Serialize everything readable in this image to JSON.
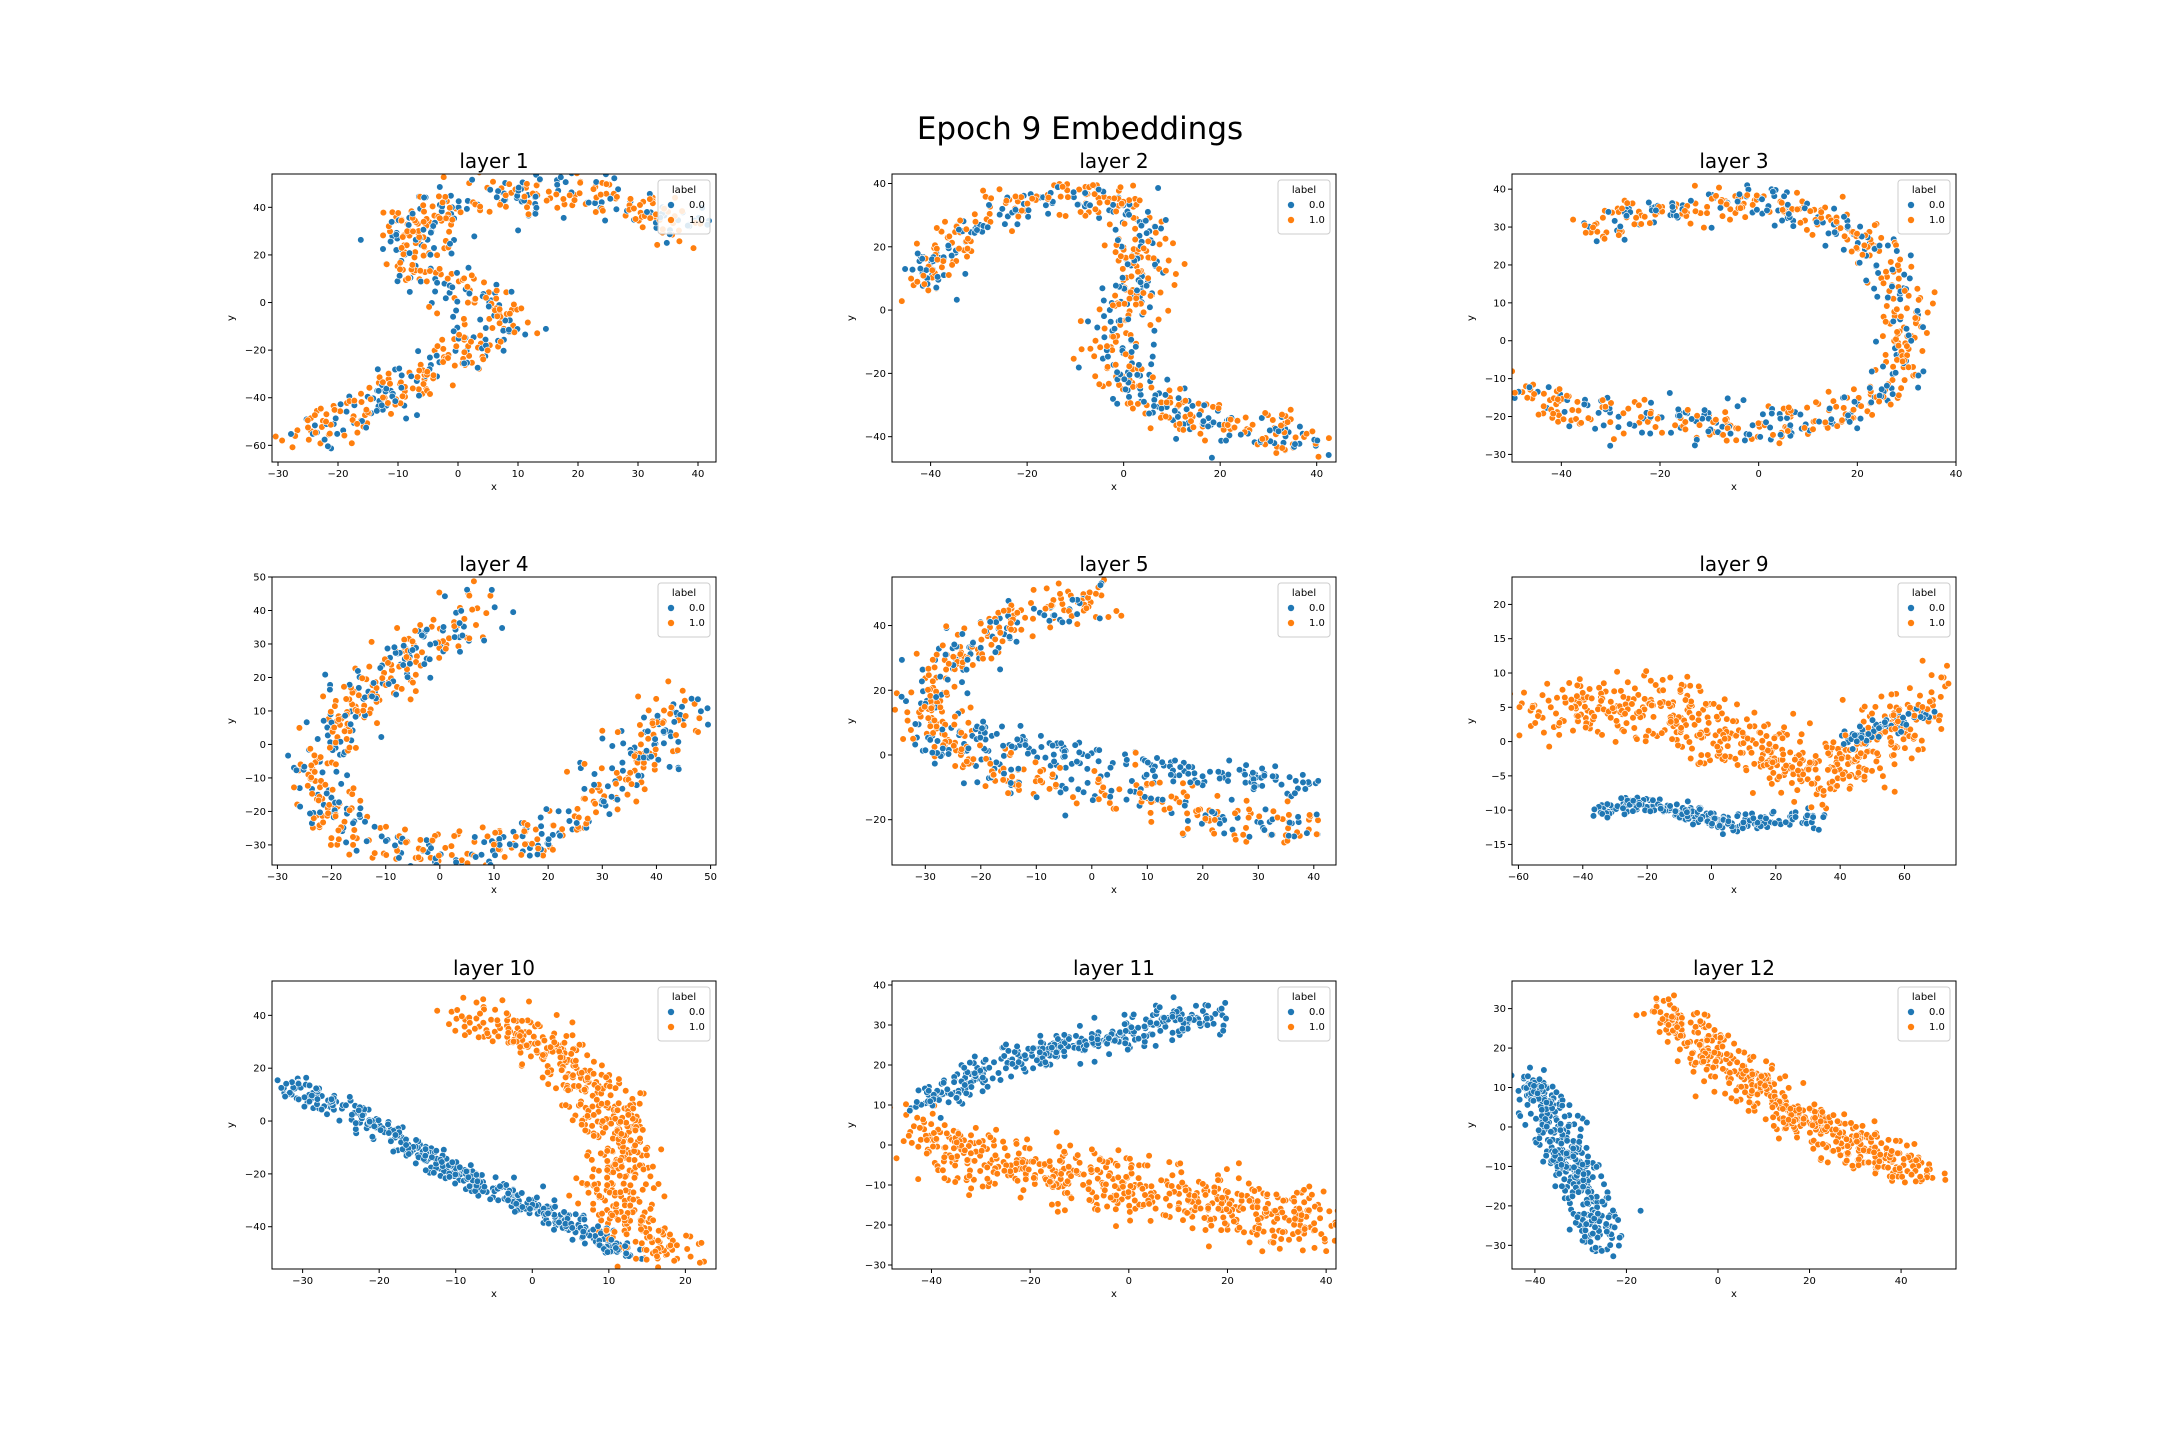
{
  "figure": {
    "suptitle": "Epoch 9 Embeddings",
    "colors": {
      "0.0": "#1f77b4",
      "1.0": "#ff7f0e"
    }
  },
  "chart_data": [
    {
      "type": "scatter",
      "title": "layer 1",
      "xlabel": "x",
      "ylabel": "y",
      "xlim": [
        -31,
        43
      ],
      "ylim": [
        -67,
        54
      ],
      "xticks": [
        -30,
        -20,
        -10,
        0,
        10,
        20,
        30,
        40
      ],
      "yticks": [
        -60,
        -40,
        -20,
        0,
        20,
        40
      ],
      "legend": {
        "title": "label",
        "entries": [
          "0.0",
          "1.0"
        ],
        "placement": "top-right"
      },
      "structure": [
        {
          "label": "mixed",
          "path": [
            [
              -27,
              -58
            ],
            [
              -20,
              -50
            ],
            [
              -12,
              -40
            ],
            [
              -4,
              -28
            ],
            [
              4,
              -15
            ],
            [
              8,
              -8
            ],
            [
              4,
              2
            ],
            [
              -4,
              10
            ],
            [
              -8,
              20
            ],
            [
              -8,
              32
            ],
            [
              -2,
              42
            ],
            [
              10,
              46
            ],
            [
              22,
              46
            ],
            [
              32,
              38
            ],
            [
              40,
              30
            ]
          ],
          "spread": 3.5,
          "n": 620
        }
      ]
    },
    {
      "type": "scatter",
      "title": "layer 2",
      "xlabel": "x",
      "ylabel": "y",
      "xlim": [
        -48,
        44
      ],
      "ylim": [
        -48,
        43
      ],
      "xticks": [
        -40,
        -20,
        0,
        20,
        40
      ],
      "yticks": [
        -40,
        -20,
        0,
        20,
        40
      ],
      "legend": {
        "title": "label",
        "entries": [
          "0.0",
          "1.0"
        ],
        "placement": "top-right"
      },
      "structure": [
        {
          "label": "mixed",
          "path": [
            [
              -42,
              7
            ],
            [
              -37,
              18
            ],
            [
              -30,
              28
            ],
            [
              -20,
              35
            ],
            [
              -10,
              37
            ],
            [
              -2,
              35
            ],
            [
              3,
              25
            ],
            [
              4,
              10
            ],
            [
              0,
              -5
            ],
            [
              -2,
              -15
            ],
            [
              4,
              -28
            ],
            [
              15,
              -35
            ],
            [
              28,
              -38
            ],
            [
              40,
              -43
            ]
          ],
          "spread": 3.2,
          "n": 620
        }
      ]
    },
    {
      "type": "scatter",
      "title": "layer 3",
      "xlabel": "x",
      "ylabel": "y",
      "xlim": [
        -50,
        40
      ],
      "ylim": [
        -32,
        44
      ],
      "xticks": [
        -40,
        -20,
        0,
        20,
        40
      ],
      "yticks": [
        -30,
        -20,
        -10,
        0,
        10,
        20,
        30,
        40
      ],
      "legend": {
        "title": "label",
        "entries": [
          "0.0",
          "1.0"
        ],
        "placement": "top-right"
      },
      "structure": [
        {
          "label": "mixed",
          "path": [
            [
              -33,
              29
            ],
            [
              -25,
              33
            ],
            [
              -15,
              34
            ],
            [
              -5,
              37
            ],
            [
              5,
              35
            ],
            [
              15,
              32
            ],
            [
              24,
              25
            ],
            [
              30,
              12
            ],
            [
              30,
              0
            ],
            [
              26,
              -12
            ],
            [
              18,
              -20
            ],
            [
              5,
              -22
            ],
            [
              -10,
              -22
            ],
            [
              -25,
              -20
            ],
            [
              -38,
              -18
            ],
            [
              -47,
              -13
            ]
          ],
          "spread": 2.8,
          "n": 640
        }
      ]
    },
    {
      "type": "scatter",
      "title": "layer 4",
      "xlabel": "x",
      "ylabel": "y",
      "xlim": [
        -31,
        51
      ],
      "ylim": [
        -36,
        50
      ],
      "xticks": [
        -30,
        -20,
        -10,
        0,
        10,
        20,
        30,
        40,
        50
      ],
      "yticks": [
        -30,
        -20,
        -10,
        0,
        10,
        20,
        30,
        40,
        50
      ],
      "legend": {
        "title": "label",
        "entries": [
          "0.0",
          "1.0"
        ],
        "placement": "top-right"
      },
      "structure": [
        {
          "label": "mixed",
          "path": [
            [
              10,
              43
            ],
            [
              4,
              36
            ],
            [
              -4,
              28
            ],
            [
              -12,
              18
            ],
            [
              -20,
              5
            ],
            [
              -24,
              -8
            ],
            [
              -20,
              -22
            ],
            [
              -10,
              -30
            ],
            [
              5,
              -33
            ],
            [
              18,
              -28
            ],
            [
              30,
              -15
            ],
            [
              38,
              -2
            ],
            [
              43,
              10
            ],
            [
              46,
              13
            ]
          ],
          "spread": 3.6,
          "n": 640
        }
      ]
    },
    {
      "type": "scatter",
      "title": "layer 5",
      "xlabel": "x",
      "ylabel": "y",
      "xlim": [
        -36,
        44
      ],
      "ylim": [
        -34,
        55
      ],
      "xticks": [
        -30,
        -20,
        -10,
        0,
        10,
        20,
        30,
        40
      ],
      "yticks": [
        -20,
        0,
        20,
        40
      ],
      "legend": {
        "title": "label",
        "entries": [
          "0.0",
          "1.0"
        ],
        "placement": "top-right"
      },
      "structure": [
        {
          "label": "mixed",
          "path": [
            [
              2,
              49
            ],
            [
              -8,
              45
            ],
            [
              -18,
              38
            ],
            [
              -26,
              28
            ],
            [
              -30,
              15
            ],
            [
              -26,
              2
            ],
            [
              -15,
              -6
            ],
            [
              0,
              -10
            ],
            [
              15,
              -15
            ],
            [
              28,
              -20
            ],
            [
              40,
              -22
            ]
          ],
          "spread": 3.3,
          "n": 520
        },
        {
          "label": "0.0",
          "path": [
            [
              -22,
              8
            ],
            [
              -10,
              2
            ],
            [
              5,
              -2
            ],
            [
              20,
              -5
            ],
            [
              32,
              -8
            ],
            [
              40,
              -10
            ]
          ],
          "spread": 2.2,
          "n": 150
        }
      ]
    },
    {
      "type": "scatter",
      "title": "layer 9",
      "xlabel": "x",
      "ylabel": "y",
      "xlim": [
        -62,
        76
      ],
      "ylim": [
        -18,
        24
      ],
      "xticks": [
        -60,
        -40,
        -20,
        0,
        20,
        40,
        60
      ],
      "yticks": [
        -15,
        -10,
        -5,
        0,
        5,
        10,
        15,
        20
      ],
      "legend": {
        "title": "label",
        "entries": [
          "0.0",
          "1.0"
        ],
        "placement": "top-right"
      },
      "structure": [
        {
          "label": "1.0",
          "path": [
            [
              -50,
              3
            ],
            [
              -35,
              6
            ],
            [
              -20,
              5
            ],
            [
              -5,
              3
            ],
            [
              10,
              0
            ],
            [
              25,
              -4
            ],
            [
              35,
              -5
            ],
            [
              45,
              -3
            ],
            [
              55,
              2
            ],
            [
              65,
              5
            ],
            [
              70,
              8
            ]
          ],
          "spread": 4.5,
          "n": 560
        },
        {
          "label": "0.0",
          "path": [
            [
              -35,
              -10
            ],
            [
              -20,
              -9
            ],
            [
              -5,
              -11
            ],
            [
              10,
              -12
            ],
            [
              25,
              -11
            ],
            [
              32,
              -11
            ]
          ],
          "spread": 1.6,
          "n": 230
        },
        {
          "label": "0.0",
          "path": [
            [
              42,
              0
            ],
            [
              52,
              2
            ],
            [
              60,
              3
            ],
            [
              68,
              4
            ]
          ],
          "spread": 1.3,
          "n": 70
        }
      ]
    },
    {
      "type": "scatter",
      "title": "layer 10",
      "xlabel": "x",
      "ylabel": "y",
      "xlim": [
        -34,
        24
      ],
      "ylim": [
        -56,
        53
      ],
      "xticks": [
        -30,
        -20,
        -10,
        0,
        10,
        20
      ],
      "yticks": [
        -40,
        -20,
        0,
        20,
        40
      ],
      "legend": {
        "title": "label",
        "entries": [
          "0.0",
          "1.0"
        ],
        "placement": "top-right"
      },
      "structure": [
        {
          "label": "0.0",
          "path": [
            [
              -32,
              13
            ],
            [
              -24,
              5
            ],
            [
              -16,
              -10
            ],
            [
              -8,
              -22
            ],
            [
              0,
              -32
            ],
            [
              6,
              -40
            ],
            [
              12,
              -50
            ]
          ],
          "spread": 1.7,
          "n": 440
        },
        {
          "label": "1.0",
          "path": [
            [
              -10,
              40
            ],
            [
              -2,
              35
            ],
            [
              5,
              20
            ],
            [
              10,
              5
            ],
            [
              12,
              -10
            ],
            [
              11,
              -30
            ],
            [
              15,
              -45
            ],
            [
              20,
              -50
            ]
          ],
          "spread": 3.6,
          "n": 520
        }
      ]
    },
    {
      "type": "scatter",
      "title": "layer 11",
      "xlabel": "x",
      "ylabel": "y",
      "xlim": [
        -48,
        42
      ],
      "ylim": [
        -31,
        41
      ],
      "xticks": [
        -40,
        -20,
        0,
        20,
        40
      ],
      "yticks": [
        -30,
        -20,
        -10,
        0,
        10,
        20,
        30,
        40
      ],
      "legend": {
        "title": "label",
        "entries": [
          "0.0",
          "1.0"
        ],
        "placement": "top-right"
      },
      "structure": [
        {
          "label": "0.0",
          "path": [
            [
              -42,
              10
            ],
            [
              -30,
              18
            ],
            [
              -15,
              24
            ],
            [
              0,
              28
            ],
            [
              10,
              31
            ],
            [
              18,
              32
            ]
          ],
          "spread": 2.4,
          "n": 330
        },
        {
          "label": "1.0",
          "path": [
            [
              -43,
              3
            ],
            [
              -30,
              -3
            ],
            [
              -15,
              -7
            ],
            [
              0,
              -10
            ],
            [
              15,
              -14
            ],
            [
              30,
              -18
            ],
            [
              38,
              -20
            ]
          ],
          "spread": 4.8,
          "n": 580
        }
      ]
    },
    {
      "type": "scatter",
      "title": "layer 12",
      "xlabel": "x",
      "ylabel": "y",
      "xlim": [
        -45,
        52
      ],
      "ylim": [
        -36,
        37
      ],
      "xticks": [
        -40,
        -20,
        0,
        20,
        40
      ],
      "yticks": [
        -30,
        -20,
        -10,
        0,
        10,
        20,
        30
      ],
      "legend": {
        "title": "label",
        "entries": [
          "0.0",
          "1.0"
        ],
        "placement": "top-right"
      },
      "structure": [
        {
          "label": "0.0",
          "path": [
            [
              -41,
              13
            ],
            [
              -36,
              0
            ],
            [
              -31,
              -12
            ],
            [
              -27,
              -22
            ],
            [
              -25,
              -30
            ]
          ],
          "spread": 2.4,
          "n": 360
        },
        {
          "label": "1.0",
          "path": [
            [
              -12,
              30
            ],
            [
              -2,
              20
            ],
            [
              8,
              10
            ],
            [
              18,
              2
            ],
            [
              30,
              -5
            ],
            [
              42,
              -10
            ],
            [
              46,
              -11
            ]
          ],
          "spread": 3.0,
          "n": 520
        }
      ]
    }
  ]
}
